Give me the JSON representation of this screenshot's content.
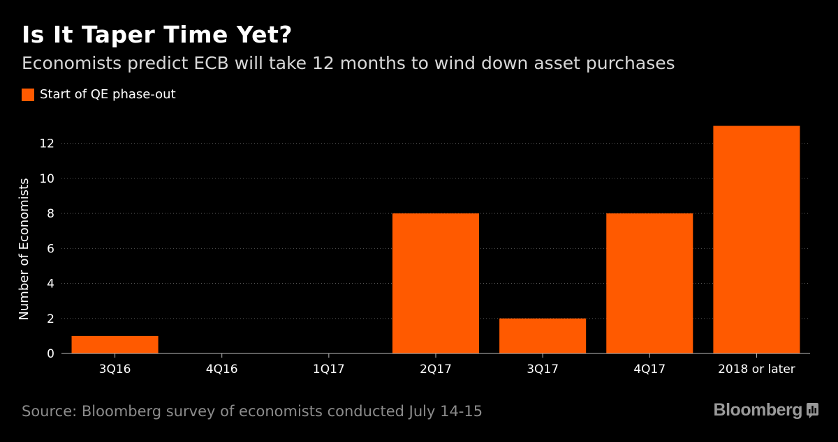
{
  "header": {
    "title": "Is It Taper Time Yet?",
    "subtitle": "Economists predict ECB will take 12 months to wind down asset purchases"
  },
  "footer": {
    "source": "Source: Bloomberg survey of economists conducted July 14-15",
    "brand": "Bloomberg"
  },
  "colors": {
    "bar": "#ff5a00",
    "background": "#000000",
    "grid": "#555555"
  },
  "chart_data": {
    "type": "bar",
    "categories": [
      "3Q16",
      "4Q16",
      "1Q17",
      "2Q17",
      "3Q17",
      "4Q17",
      "2018 or later"
    ],
    "series": [
      {
        "name": "Start of QE phase-out",
        "values": [
          1,
          0,
          0,
          8,
          2,
          8,
          13
        ]
      }
    ],
    "ylabel": "Number of Economists",
    "ylim": [
      0,
      13.5
    ],
    "yticks": [
      0,
      2,
      4,
      6,
      8,
      10,
      12
    ],
    "grid": true,
    "legend_position": "top-left"
  }
}
